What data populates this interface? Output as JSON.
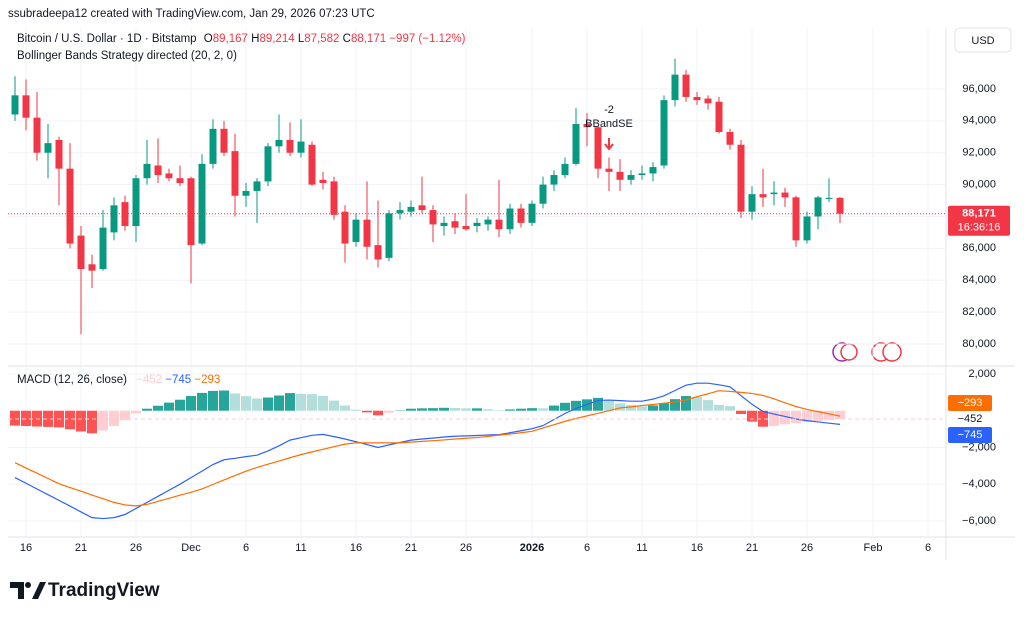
{
  "header": {
    "credit": "ssubradeepa12 created with TradingView.com, Jan 29, 2026 07:23 UTC"
  },
  "toolbar": {
    "currency": "USD"
  },
  "footer": {
    "brand": "TradingView"
  },
  "chart_data": [
    {
      "type": "candlestick",
      "title": "Bitcoin / U.S. Dollar · 1D · Bitstamp",
      "ohlc_legend": [
        {
          "key": "O",
          "text": "89,167"
        },
        {
          "key": "H",
          "text": "89,214"
        },
        {
          "key": "L",
          "text": "87,582"
        },
        {
          "key": "C",
          "text": "88,171"
        }
      ],
      "change": "−997 (−1.12%)",
      "indicator": "Bollinger Bands Strategy directed (20, 2, 0)",
      "x": [
        "2025-11-15",
        "2025-11-16",
        "2025-11-17",
        "2025-11-18",
        "2025-11-19",
        "2025-11-20",
        "2025-11-21",
        "2025-11-22",
        "2025-11-23",
        "2025-11-24",
        "2025-11-25",
        "2025-11-26",
        "2025-11-27",
        "2025-11-28",
        "2025-11-29",
        "2025-11-30",
        "2025-12-01",
        "2025-12-02",
        "2025-12-03",
        "2025-12-04",
        "2025-12-05",
        "2025-12-06",
        "2025-12-07",
        "2025-12-08",
        "2025-12-09",
        "2025-12-10",
        "2025-12-11",
        "2025-12-12",
        "2025-12-13",
        "2025-12-14",
        "2025-12-15",
        "2025-12-16",
        "2025-12-17",
        "2025-12-18",
        "2025-12-19",
        "2025-12-20",
        "2025-12-21",
        "2025-12-22",
        "2025-12-23",
        "2025-12-24",
        "2025-12-25",
        "2025-12-26",
        "2025-12-27",
        "2025-12-28",
        "2025-12-29",
        "2025-12-30",
        "2025-12-31",
        "2026-01-01",
        "2026-01-02",
        "2026-01-03",
        "2026-01-04",
        "2026-01-05",
        "2026-01-06",
        "2026-01-07",
        "2026-01-08",
        "2026-01-09",
        "2026-01-10",
        "2026-01-11",
        "2026-01-12",
        "2026-01-13",
        "2026-01-14",
        "2026-01-15",
        "2026-01-16",
        "2026-01-17",
        "2026-01-18",
        "2026-01-19",
        "2026-01-20",
        "2026-01-21",
        "2026-01-22",
        "2026-01-23",
        "2026-01-24",
        "2026-01-25",
        "2026-01-26",
        "2026-01-27",
        "2026-01-28",
        "2026-01-29"
      ],
      "open": [
        94400,
        95600,
        94200,
        92000,
        92800,
        91000,
        86800,
        85000,
        84700,
        87000,
        88900,
        87400,
        90400,
        91200,
        90700,
        90400,
        90400,
        86300,
        91300,
        93500,
        92100,
        89300,
        89600,
        90200,
        92400,
        92800,
        92000,
        92500,
        90300,
        90200,
        88300,
        86400,
        87800,
        86200,
        85400,
        88200,
        88300,
        88700,
        88400,
        87400,
        87700,
        87400,
        87400,
        87500,
        87800,
        87200,
        88500,
        87600,
        88800,
        90000,
        90600,
        91300,
        93800,
        93600,
        91000,
        90800,
        90300,
        90600,
        90700,
        91200,
        95300,
        96900,
        95500,
        95400,
        95200,
        93300,
        92500,
        88300,
        89400,
        89400,
        89500,
        89200,
        86500,
        88000,
        89100,
        89167
      ],
      "high": [
        96800,
        96600,
        95800,
        93800,
        93000,
        92600,
        87400,
        85600,
        88400,
        89200,
        89300,
        90600,
        92800,
        92900,
        91000,
        91200,
        90500,
        91900,
        94100,
        94000,
        93200,
        90100,
        90400,
        92600,
        94400,
        93900,
        94100,
        92700,
        90800,
        90500,
        88700,
        88200,
        90200,
        89000,
        88400,
        88900,
        89000,
        90500,
        88700,
        88000,
        88200,
        89400,
        87900,
        88000,
        90300,
        88800,
        88800,
        89000,
        90500,
        90900,
        91700,
        94800,
        94500,
        93700,
        91700,
        91600,
        90900,
        91200,
        91400,
        95600,
        97900,
        97200,
        95800,
        95600,
        95500,
        93500,
        92800,
        89900,
        91000,
        90200,
        89800,
        89300,
        88300,
        89300,
        90400,
        89214
      ],
      "low": [
        94000,
        93400,
        91500,
        90400,
        88700,
        86000,
        80600,
        83500,
        84600,
        86500,
        87100,
        86400,
        90000,
        90100,
        90200,
        89900,
        83800,
        86200,
        91000,
        91800,
        88000,
        88600,
        87600,
        89900,
        92000,
        91800,
        91700,
        89900,
        89700,
        87800,
        85100,
        86100,
        85300,
        84800,
        85200,
        87800,
        88000,
        88200,
        86400,
        86800,
        86900,
        87100,
        87000,
        87100,
        86700,
        86900,
        87300,
        87400,
        88500,
        89600,
        90400,
        91200,
        92400,
        90400,
        89600,
        89600,
        90000,
        90300,
        90200,
        91000,
        94900,
        95200,
        95000,
        94700,
        93200,
        92200,
        87900,
        87800,
        88600,
        88700,
        88600,
        86100,
        86300,
        87200,
        88900,
        87582
      ],
      "close": [
        95600,
        94200,
        92000,
        92600,
        91000,
        86300,
        84700,
        84600,
        87300,
        88700,
        87400,
        90400,
        91300,
        90600,
        90400,
        90100,
        86200,
        91300,
        93500,
        92000,
        89300,
        89600,
        90200,
        92400,
        92800,
        92000,
        92700,
        90000,
        90100,
        88100,
        86300,
        87800,
        86100,
        85300,
        88200,
        88400,
        88600,
        88400,
        87500,
        87600,
        87300,
        87200,
        87600,
        87800,
        87200,
        88500,
        87600,
        88800,
        90000,
        90600,
        91300,
        93800,
        93600,
        91000,
        90800,
        90300,
        90600,
        90700,
        91100,
        95300,
        96900,
        95500,
        95300,
        95100,
        93300,
        92500,
        88300,
        89400,
        89200,
        89500,
        89200,
        86500,
        88000,
        89200,
        89167,
        88171
      ],
      "up_color": "#089981",
      "down_color": "#f23645",
      "last_label": "88,171",
      "countdown": "16:36:16",
      "ylim": [
        78680,
        99700
      ],
      "yticks": [
        {
          "value": 80000,
          "label": "80,000"
        },
        {
          "value": 82000,
          "label": "82,000"
        },
        {
          "value": 84000,
          "label": "84,000"
        },
        {
          "value": 86000,
          "label": "86,000"
        },
        {
          "value": 88000,
          "label": "88,000"
        },
        {
          "value": 90000,
          "label": "90,000"
        },
        {
          "value": 92000,
          "label": "92,000"
        },
        {
          "value": 94000,
          "label": "94,000"
        },
        {
          "value": 96000,
          "label": "96,000"
        }
      ],
      "xticks": [
        {
          "value": "2025-11-16",
          "label": "16"
        },
        {
          "value": "2025-11-21",
          "label": "21"
        },
        {
          "value": "2025-11-26",
          "label": "26"
        },
        {
          "value": "2025-12-01",
          "label": "Dec"
        },
        {
          "value": "2025-12-06",
          "label": "6"
        },
        {
          "value": "2025-12-11",
          "label": "11"
        },
        {
          "value": "2025-12-16",
          "label": "16"
        },
        {
          "value": "2025-12-21",
          "label": "21"
        },
        {
          "value": "2025-12-26",
          "label": "26"
        },
        {
          "value": "2026-01-01",
          "label": "2026"
        },
        {
          "value": "2026-01-06",
          "label": "6"
        },
        {
          "value": "2026-01-11",
          "label": "11"
        },
        {
          "value": "2026-01-16",
          "label": "16"
        },
        {
          "value": "2026-01-21",
          "label": "21"
        },
        {
          "value": "2026-01-26",
          "label": "26"
        },
        {
          "value": "2026-02-01",
          "label": "Feb"
        },
        {
          "value": "2026-02-06",
          "label": "6"
        }
      ],
      "annotations": [
        {
          "x": "2026-01-08",
          "lines": [
            "-2",
            "BBandSE"
          ]
        }
      ],
      "grid": true
    },
    {
      "type": "macd",
      "title": "MACD (12, 26, close)",
      "histogram": {
        "values": [
          -810,
          -830,
          -860,
          -880,
          -910,
          -1010,
          -1130,
          -1230,
          -1080,
          -830,
          -520,
          -140,
          110,
          270,
          440,
          600,
          800,
          970,
          1080,
          1100,
          940,
          790,
          670,
          720,
          830,
          960,
          920,
          900,
          810,
          550,
          280,
          60,
          -90,
          -250,
          -110,
          20,
          110,
          130,
          140,
          160,
          150,
          130,
          130,
          80,
          30,
          70,
          110,
          140,
          130,
          280,
          430,
          540,
          620,
          700,
          580,
          400,
          310,
          240,
          290,
          400,
          630,
          800,
          740,
          580,
          320,
          250,
          -180,
          -590,
          -870,
          -830,
          -740,
          -680,
          -610,
          -560,
          -510,
          -452
        ],
        "colors": {
          "up_rise": "#26a69a",
          "up_fall": "#b2dfdb",
          "down_fall": "#ff5252",
          "down_rise": "#ffcdd2"
        },
        "last_label": "−452"
      },
      "macd": {
        "values": [
          -3640,
          -3950,
          -4260,
          -4570,
          -4880,
          -5190,
          -5510,
          -5820,
          -5870,
          -5820,
          -5650,
          -5320,
          -4990,
          -4660,
          -4330,
          -4000,
          -3640,
          -3290,
          -2930,
          -2670,
          -2590,
          -2500,
          -2420,
          -2190,
          -1910,
          -1600,
          -1470,
          -1340,
          -1290,
          -1410,
          -1540,
          -1690,
          -1840,
          -2000,
          -1860,
          -1730,
          -1600,
          -1540,
          -1490,
          -1430,
          -1390,
          -1370,
          -1350,
          -1320,
          -1300,
          -1200,
          -1090,
          -980,
          -810,
          -480,
          -150,
          120,
          340,
          560,
          580,
          550,
          520,
          520,
          630,
          810,
          1100,
          1390,
          1500,
          1500,
          1410,
          1300,
          820,
          350,
          -40,
          -180,
          -310,
          -450,
          -540,
          -610,
          -680,
          -745
        ],
        "color": "#2962ff",
        "last_label": "−745"
      },
      "signal": {
        "values": [
          -2830,
          -3120,
          -3400,
          -3690,
          -3970,
          -4180,
          -4380,
          -4590,
          -4790,
          -4990,
          -5130,
          -5180,
          -5100,
          -4930,
          -4770,
          -4600,
          -4440,
          -4260,
          -4010,
          -3770,
          -3530,
          -3290,
          -3090,
          -2910,
          -2740,
          -2560,
          -2390,
          -2240,
          -2100,
          -1960,
          -1820,
          -1750,
          -1750,
          -1750,
          -1750,
          -1750,
          -1710,
          -1670,
          -1630,
          -1590,
          -1540,
          -1500,
          -1460,
          -1400,
          -1330,
          -1270,
          -1200,
          -1120,
          -940,
          -760,
          -580,
          -420,
          -280,
          -140,
          0,
          150,
          210,
          280,
          340,
          410,
          470,
          590,
          760,
          920,
          1090,
          1050,
          1000,
          940,
          830,
          650,
          430,
          230,
          70,
          -50,
          -170,
          -293
        ],
        "color": "#ff6d00",
        "last_label": "−293"
      },
      "ylim": [
        -6820,
        2380
      ],
      "yticks": [
        {
          "value": 2000,
          "label": "2,000"
        },
        {
          "value": -2000,
          "label": "−2,000"
        },
        {
          "value": -4000,
          "label": "−4,000"
        },
        {
          "value": -6000,
          "label": "−6,000"
        }
      ],
      "grid": true
    }
  ]
}
